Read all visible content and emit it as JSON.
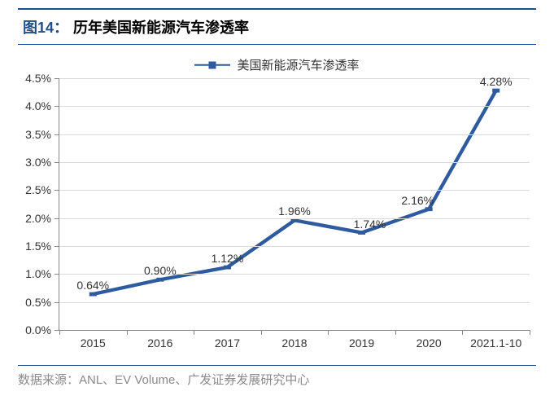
{
  "header": {
    "figure_label": "图14：",
    "title": "历年美国新能源汽车渗透率"
  },
  "legend": {
    "series_name": "美国新能源汽车渗透率"
  },
  "chart": {
    "type": "line",
    "series_color": "#2e5aa0",
    "marker_style": "square",
    "marker_size": 9,
    "line_width": 2.5,
    "grid_color": "#d9d9d9",
    "axis_color": "#888888",
    "background_color": "#ffffff",
    "label_fontsize": 14,
    "ylim": [
      0,
      4.5
    ],
    "ytick_step": 0.5,
    "y_format": "percent_one_decimal",
    "categories": [
      "2015",
      "2016",
      "2017",
      "2018",
      "2019",
      "2020",
      "2021.1-10"
    ],
    "values": [
      0.64,
      0.9,
      1.12,
      1.96,
      1.74,
      2.16,
      4.28
    ],
    "value_labels": [
      "0.64%",
      "0.90%",
      "1.12%",
      "1.96%",
      "1.74%",
      "2.16%",
      "4.28%"
    ]
  },
  "footer": {
    "source": "数据来源：ANL、EV Volume、广发证券发展研究中心"
  }
}
